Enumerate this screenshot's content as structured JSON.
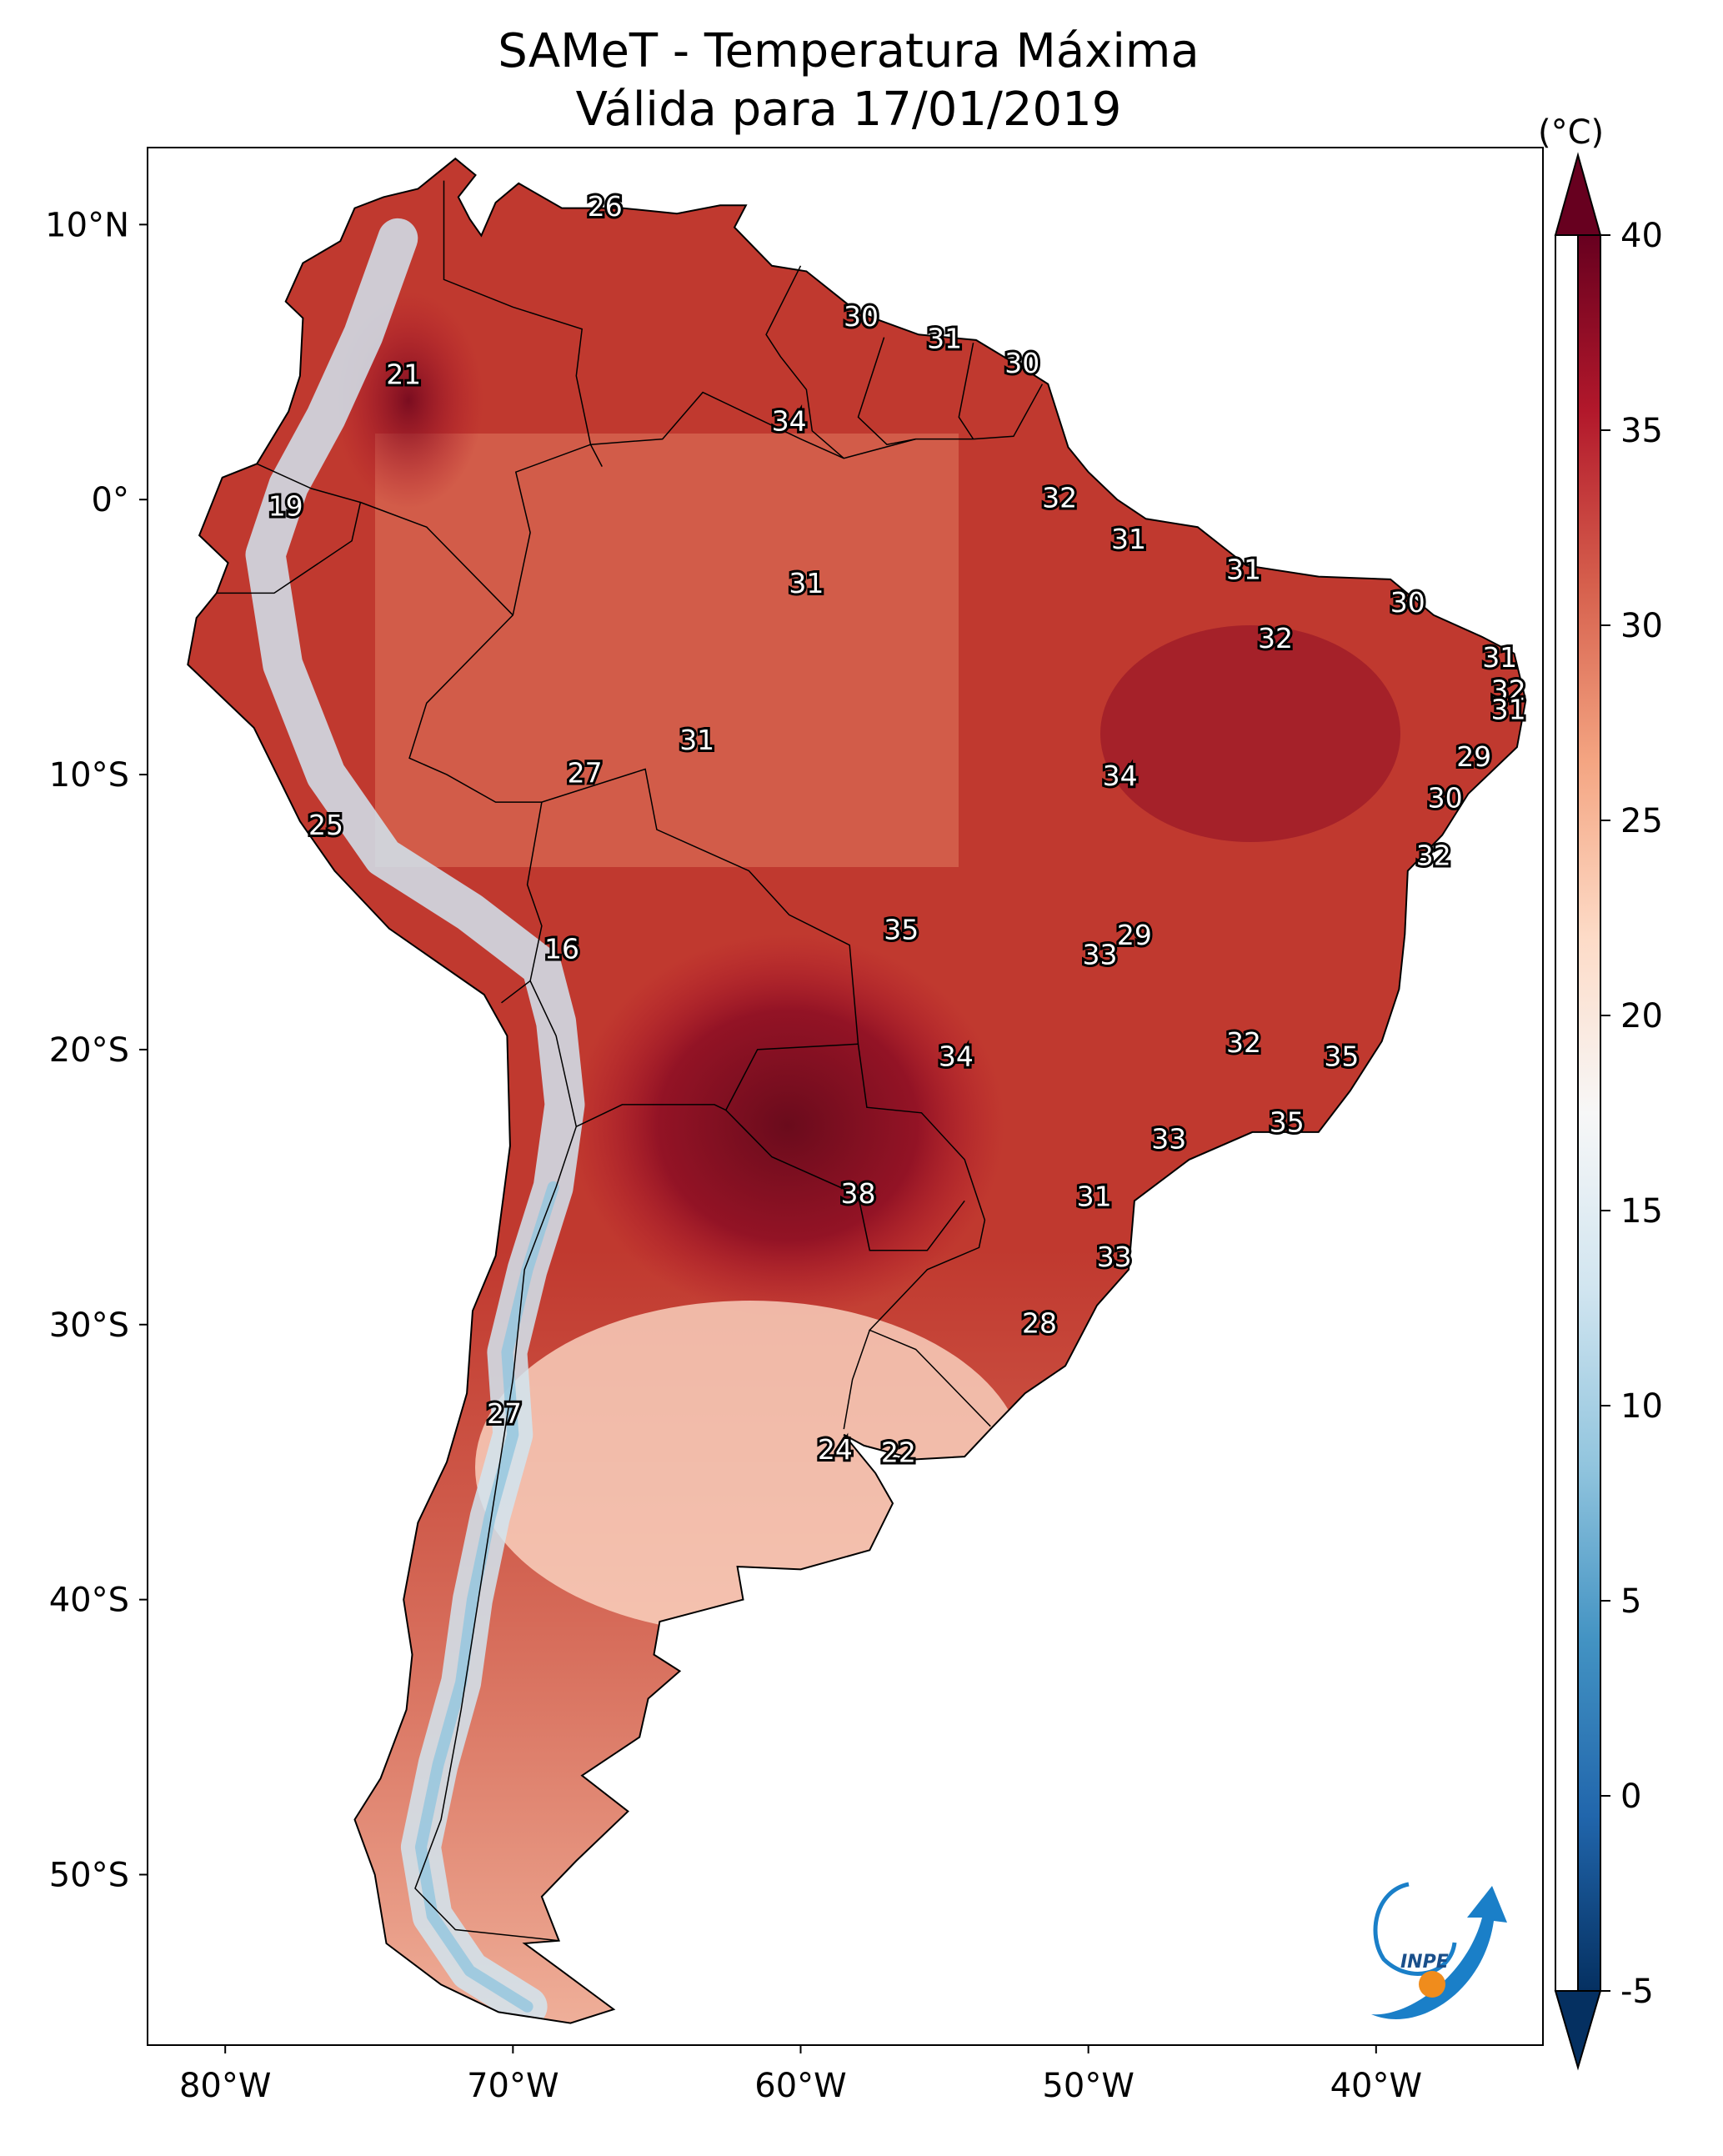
{
  "map": {
    "title_line1": "SAMeT - Temperatura Máxima",
    "title_line2": "Válida para 17/01/2019",
    "unit": "(°C)",
    "lat_ticks": [
      {
        "label": "10°N",
        "lat": 10
      },
      {
        "label": "0°",
        "lat": 0
      },
      {
        "label": "10°S",
        "lat": -10
      },
      {
        "label": "20°S",
        "lat": -20
      },
      {
        "label": "30°S",
        "lat": -30
      },
      {
        "label": "40°S",
        "lat": -40
      },
      {
        "label": "50°S",
        "lat": -50
      }
    ],
    "lon_ticks": [
      {
        "label": "80°W",
        "lon": -80
      },
      {
        "label": "70°W",
        "lon": -70
      },
      {
        "label": "60°W",
        "lon": -60
      },
      {
        "label": "50°W",
        "lon": -50
      },
      {
        "label": "40°W",
        "lon": -40
      }
    ],
    "extent": {
      "lon_min": -82.7,
      "lon_max": -34.2,
      "lat_min": -56.2,
      "lat_max": 12.8
    },
    "colorbar": {
      "min": -5,
      "max": 40,
      "ticks": [
        "40",
        "35",
        "30",
        "25",
        "20",
        "15",
        "10",
        "5",
        "0",
        "-5"
      ],
      "colors": [
        "#053061",
        "#2166ac",
        "#4393c3",
        "#92c5de",
        "#d1e5f0",
        "#f7f7f7",
        "#fddbc7",
        "#f4a582",
        "#d6604d",
        "#b2182b",
        "#67001f"
      ]
    },
    "point_labels": [
      {
        "text": "26",
        "lon": -66.8,
        "lat": 10.6
      },
      {
        "text": "30",
        "lon": -57.9,
        "lat": 6.6
      },
      {
        "text": "31",
        "lon": -55.0,
        "lat": 5.8
      },
      {
        "text": "30",
        "lon": -52.3,
        "lat": 4.9
      },
      {
        "text": "21",
        "lon": -73.8,
        "lat": 4.5
      },
      {
        "text": "34",
        "lon": -60.4,
        "lat": 2.8
      },
      {
        "text": "32",
        "lon": -51.0,
        "lat": 0.0
      },
      {
        "text": "19",
        "lon": -77.9,
        "lat": -0.3
      },
      {
        "text": "31",
        "lon": -48.6,
        "lat": -1.5
      },
      {
        "text": "31",
        "lon": -44.6,
        "lat": -2.6
      },
      {
        "text": "31",
        "lon": -59.8,
        "lat": -3.1
      },
      {
        "text": "30",
        "lon": -38.9,
        "lat": -3.8
      },
      {
        "text": "32",
        "lon": -43.5,
        "lat": -5.1
      },
      {
        "text": "31",
        "lon": -35.7,
        "lat": -5.8
      },
      {
        "text": "32",
        "lon": -35.4,
        "lat": -7.0
      },
      {
        "text": "31",
        "lon": -35.4,
        "lat": -7.7
      },
      {
        "text": "31",
        "lon": -63.6,
        "lat": -8.8
      },
      {
        "text": "29",
        "lon": -36.6,
        "lat": -9.4
      },
      {
        "text": "27",
        "lon": -67.5,
        "lat": -10.0
      },
      {
        "text": "34",
        "lon": -48.9,
        "lat": -10.1
      },
      {
        "text": "30",
        "lon": -37.6,
        "lat": -10.9
      },
      {
        "text": "25",
        "lon": -76.5,
        "lat": -11.9
      },
      {
        "text": "32",
        "lon": -38.0,
        "lat": -13.0
      },
      {
        "text": "29",
        "lon": -48.4,
        "lat": -15.9
      },
      {
        "text": "35",
        "lon": -56.5,
        "lat": -15.7
      },
      {
        "text": "33",
        "lon": -49.6,
        "lat": -16.6
      },
      {
        "text": "16",
        "lon": -68.3,
        "lat": -16.4
      },
      {
        "text": "32",
        "lon": -44.6,
        "lat": -19.8
      },
      {
        "text": "34",
        "lon": -54.6,
        "lat": -20.3
      },
      {
        "text": "35",
        "lon": -41.2,
        "lat": -20.3
      },
      {
        "text": "35",
        "lon": -43.1,
        "lat": -22.7
      },
      {
        "text": "33",
        "lon": -47.2,
        "lat": -23.3
      },
      {
        "text": "38",
        "lon": -58.0,
        "lat": -25.3
      },
      {
        "text": "31",
        "lon": -49.8,
        "lat": -25.4
      },
      {
        "text": "33",
        "lon": -49.1,
        "lat": -27.6
      },
      {
        "text": "28",
        "lon": -51.7,
        "lat": -30.0
      },
      {
        "text": "27",
        "lon": -70.3,
        "lat": -33.3
      },
      {
        "text": "24",
        "lon": -58.8,
        "lat": -34.6
      },
      {
        "text": "22",
        "lon": -56.6,
        "lat": -34.7
      }
    ],
    "logo_text": "INPE"
  }
}
